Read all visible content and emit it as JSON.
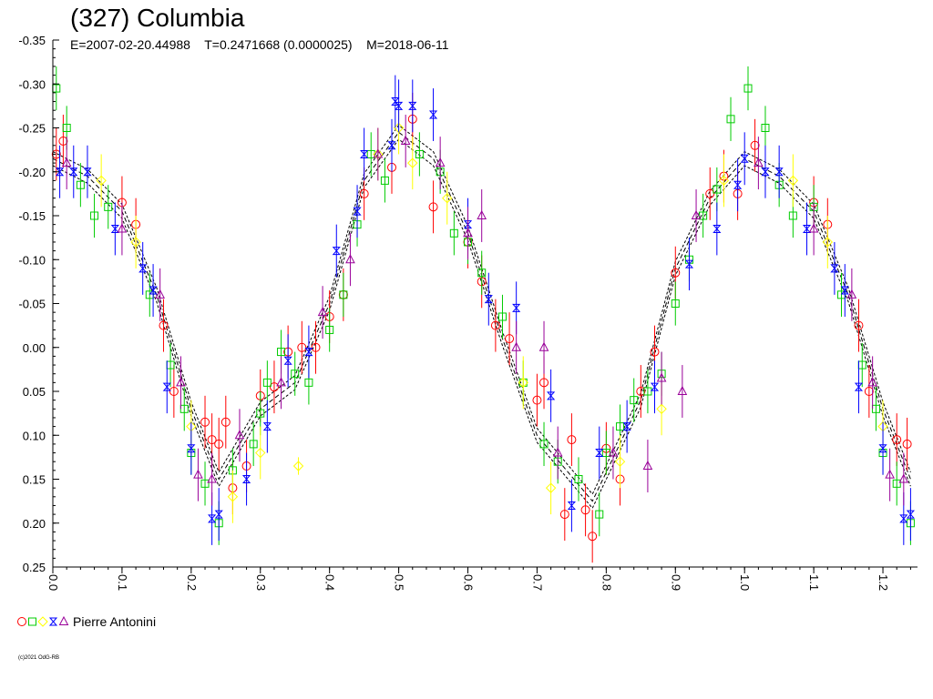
{
  "title": "(327) Columbia",
  "subtitle": "E=2007-02-20.44988    T=0.2471668 (0.0000025)    M=2018-06-11",
  "legend": {
    "label": "Pierre Antonini"
  },
  "copyright": "(c)2021 OdG-RB",
  "colors": {
    "series": [
      "#ff0000",
      "#00cc00",
      "#ffff00",
      "#0000ff",
      "#990099"
    ],
    "fit": "#000000",
    "axis": "#000000"
  },
  "chart_data": {
    "type": "scatter",
    "xlim": [
      0.0,
      1.25
    ],
    "ylim": [
      0.25,
      -0.35
    ],
    "y_inverted": true,
    "xticks": [
      "0.0",
      "0.1",
      "0.2",
      "0.3",
      "0.4",
      "0.5",
      "0.6",
      "0.7",
      "0.8",
      "0.9",
      "1.0",
      "1.1",
      "1.2"
    ],
    "yticks": [
      "-0.35",
      "-0.30",
      "-0.25",
      "-0.20",
      "-0.15",
      "-0.10",
      "-0.05",
      "0.00",
      "0.05",
      "0.10",
      "0.15",
      "0.20",
      "0.25"
    ],
    "grid": false,
    "legend_position": "bottom-left",
    "period": 1.0,
    "fit_curve": {
      "x": [
        0.0,
        0.05,
        0.1,
        0.15,
        0.2,
        0.24,
        0.3,
        0.35,
        0.4,
        0.45,
        0.5,
        0.55,
        0.6,
        0.65,
        0.7,
        0.78,
        0.85,
        0.9,
        0.95,
        1.0,
        1.05,
        1.1,
        1.15,
        1.2,
        1.24
      ],
      "y": [
        -0.215,
        -0.195,
        -0.155,
        -0.06,
        0.07,
        0.15,
        0.07,
        0.04,
        -0.05,
        -0.19,
        -0.245,
        -0.215,
        -0.13,
        -0.01,
        0.1,
        0.175,
        0.06,
        -0.09,
        -0.17,
        -0.215,
        -0.195,
        -0.155,
        -0.06,
        0.07,
        0.15
      ],
      "band": 0.008
    },
    "series": [
      {
        "symbol": "circle",
        "x": [
          0.005,
          0.015,
          0.1,
          0.12,
          0.16,
          0.175,
          0.22,
          0.23,
          0.24,
          0.25,
          0.26,
          0.28,
          0.3,
          0.32,
          0.34,
          0.36,
          0.38,
          0.4,
          0.42,
          0.45,
          0.49,
          0.52,
          0.55,
          0.6,
          0.62,
          0.64,
          0.66,
          0.7,
          0.71,
          0.74,
          0.75,
          0.77,
          0.78,
          0.8,
          0.82,
          0.85,
          0.87,
          0.9,
          0.95,
          0.97,
          0.99,
          1.015,
          1.1,
          1.12,
          1.165,
          1.18,
          1.22,
          1.235
        ],
        "y": [
          -0.22,
          -0.235,
          -0.165,
          -0.14,
          -0.025,
          0.05,
          0.085,
          0.105,
          0.11,
          0.085,
          0.16,
          0.135,
          0.055,
          0.045,
          0.005,
          0.0,
          0.0,
          -0.035,
          -0.06,
          -0.175,
          -0.205,
          -0.26,
          -0.16,
          -0.12,
          -0.075,
          -0.025,
          -0.01,
          0.06,
          0.04,
          0.19,
          0.105,
          0.185,
          0.215,
          0.115,
          0.15,
          0.05,
          0.005,
          -0.085,
          -0.175,
          -0.195,
          -0.175,
          -0.23,
          -0.165,
          -0.14,
          -0.025,
          0.05,
          0.105,
          0.11
        ],
        "err": [
          0.03,
          0.03,
          0.03,
          0.03,
          0.03,
          0.03,
          0.03,
          0.03,
          0.03,
          0.03,
          0.03,
          0.03,
          0.03,
          0.03,
          0.03,
          0.03,
          0.03,
          0.03,
          0.03,
          0.03,
          0.03,
          0.03,
          0.03,
          0.03,
          0.03,
          0.03,
          0.03,
          0.03,
          0.03,
          0.03,
          0.03,
          0.03,
          0.03,
          0.03,
          0.03,
          0.03,
          0.03,
          0.03,
          0.03,
          0.03,
          0.03,
          0.03,
          0.03,
          0.03,
          0.03,
          0.03,
          0.03,
          0.03
        ]
      },
      {
        "symbol": "square",
        "x": [
          0.005,
          0.02,
          0.04,
          0.06,
          0.08,
          0.14,
          0.17,
          0.19,
          0.2,
          0.22,
          0.24,
          0.26,
          0.29,
          0.3,
          0.31,
          0.33,
          0.35,
          0.37,
          0.4,
          0.42,
          0.44,
          0.46,
          0.48,
          0.53,
          0.56,
          0.58,
          0.6,
          0.62,
          0.65,
          0.68,
          0.71,
          0.73,
          0.76,
          0.79,
          0.8,
          0.82,
          0.84,
          0.86,
          0.88,
          0.9,
          0.92,
          0.94,
          0.96,
          0.98,
          1.005,
          1.03,
          1.05,
          1.07,
          1.1,
          1.14,
          1.17,
          1.19,
          1.2,
          1.22,
          1.24
        ],
        "y": [
          -0.295,
          -0.25,
          -0.185,
          -0.15,
          -0.16,
          -0.06,
          0.02,
          0.07,
          0.12,
          0.155,
          0.2,
          0.14,
          0.11,
          0.075,
          0.04,
          0.005,
          0.03,
          0.04,
          -0.02,
          -0.06,
          -0.14,
          -0.22,
          -0.19,
          -0.22,
          -0.2,
          -0.13,
          -0.12,
          -0.085,
          -0.035,
          0.04,
          0.11,
          0.13,
          0.15,
          0.19,
          0.12,
          0.09,
          0.06,
          0.05,
          0.03,
          -0.05,
          -0.1,
          -0.15,
          -0.18,
          -0.26,
          -0.295,
          -0.25,
          -0.185,
          -0.15,
          -0.16,
          -0.06,
          0.02,
          0.07,
          0.12,
          0.155,
          0.2
        ],
        "err": [
          0.025,
          0.025,
          0.025,
          0.025,
          0.025,
          0.025,
          0.025,
          0.025,
          0.025,
          0.025,
          0.025,
          0.025,
          0.025,
          0.025,
          0.025,
          0.025,
          0.025,
          0.025,
          0.025,
          0.025,
          0.025,
          0.025,
          0.025,
          0.025,
          0.025,
          0.025,
          0.025,
          0.025,
          0.025,
          0.025,
          0.025,
          0.025,
          0.025,
          0.025,
          0.025,
          0.025,
          0.025,
          0.025,
          0.025,
          0.025,
          0.025,
          0.025,
          0.025,
          0.025,
          0.025,
          0.025,
          0.025,
          0.025,
          0.025,
          0.025,
          0.025,
          0.025,
          0.025,
          0.025,
          0.025
        ]
      },
      {
        "symbol": "diamond",
        "x": [
          0.07,
          0.12,
          0.2,
          0.26,
          0.3,
          0.355,
          0.47,
          0.5,
          0.52,
          0.57,
          0.68,
          0.72,
          0.82,
          0.88,
          0.97,
          1.07,
          1.12,
          1.2
        ],
        "y": [
          -0.19,
          -0.12,
          0.09,
          0.17,
          0.12,
          0.135,
          -0.22,
          -0.25,
          -0.21,
          -0.17,
          0.04,
          0.16,
          0.13,
          0.07,
          -0.19,
          -0.19,
          -0.12,
          0.09
        ],
        "err": [
          0.03,
          0.03,
          0.03,
          0.03,
          0.03,
          0.01,
          0.03,
          0.03,
          0.03,
          0.03,
          0.03,
          0.03,
          0.03,
          0.03,
          0.03,
          0.03,
          0.03,
          0.03
        ]
      },
      {
        "symbol": "hourglass",
        "x": [
          0.01,
          0.03,
          0.05,
          0.09,
          0.13,
          0.145,
          0.165,
          0.2,
          0.23,
          0.24,
          0.28,
          0.31,
          0.34,
          0.37,
          0.41,
          0.44,
          0.45,
          0.49,
          0.495,
          0.5,
          0.52,
          0.55,
          0.6,
          0.63,
          0.67,
          0.72,
          0.75,
          0.79,
          0.83,
          0.87,
          0.92,
          0.96,
          0.99,
          1.0,
          1.03,
          1.05,
          1.09,
          1.13,
          1.145,
          1.165,
          1.2,
          1.23,
          1.24
        ],
        "y": [
          -0.2,
          -0.2,
          -0.2,
          -0.135,
          -0.09,
          -0.065,
          0.045,
          0.115,
          0.195,
          0.19,
          0.15,
          0.09,
          0.015,
          0.005,
          -0.11,
          -0.155,
          -0.22,
          -0.23,
          -0.28,
          -0.275,
          -0.275,
          -0.265,
          -0.14,
          -0.055,
          -0.045,
          0.055,
          0.18,
          0.12,
          0.09,
          0.045,
          -0.095,
          -0.135,
          -0.185,
          -0.215,
          -0.2,
          -0.2,
          -0.135,
          -0.09,
          -0.065,
          0.045,
          0.115,
          0.195,
          0.19
        ],
        "err": [
          0.03,
          0.03,
          0.03,
          0.03,
          0.03,
          0.03,
          0.03,
          0.03,
          0.03,
          0.03,
          0.03,
          0.03,
          0.03,
          0.03,
          0.03,
          0.03,
          0.03,
          0.03,
          0.03,
          0.03,
          0.03,
          0.03,
          0.03,
          0.03,
          0.03,
          0.03,
          0.03,
          0.03,
          0.03,
          0.03,
          0.03,
          0.03,
          0.03,
          0.03,
          0.03,
          0.03,
          0.03,
          0.03,
          0.03,
          0.03,
          0.03,
          0.03,
          0.03
        ]
      },
      {
        "symbol": "triangle",
        "x": [
          0.02,
          0.1,
          0.155,
          0.185,
          0.21,
          0.23,
          0.27,
          0.33,
          0.39,
          0.43,
          0.47,
          0.51,
          0.56,
          0.6,
          0.62,
          0.67,
          0.71,
          0.73,
          0.81,
          0.86,
          0.88,
          0.91,
          0.93,
          1.02,
          1.1,
          1.155,
          1.185,
          1.21,
          1.23
        ],
        "y": [
          -0.21,
          -0.135,
          -0.06,
          0.04,
          0.145,
          0.15,
          0.1,
          0.04,
          -0.04,
          -0.1,
          -0.22,
          -0.235,
          -0.21,
          -0.13,
          -0.15,
          0.0,
          0.0,
          0.12,
          0.12,
          0.135,
          0.035,
          0.05,
          -0.15,
          -0.21,
          -0.135,
          -0.06,
          0.04,
          0.145,
          0.15
        ],
        "err": [
          0.03,
          0.03,
          0.03,
          0.03,
          0.03,
          0.03,
          0.03,
          0.03,
          0.03,
          0.03,
          0.03,
          0.03,
          0.03,
          0.03,
          0.03,
          0.03,
          0.03,
          0.03,
          0.03,
          0.03,
          0.03,
          0.03,
          0.03,
          0.03,
          0.03,
          0.03,
          0.03,
          0.03,
          0.03
        ]
      }
    ]
  }
}
